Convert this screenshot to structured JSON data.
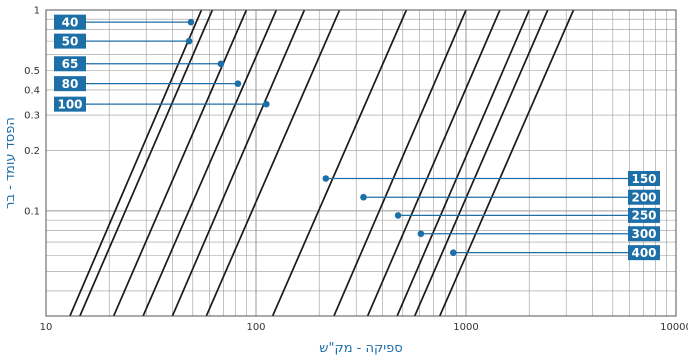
{
  "chart_data": {
    "type": "line",
    "xlabel": "ספיקה - מק\"ש",
    "ylabel": "הפסד עומד - בר",
    "xscale": "log",
    "yscale": "log",
    "xlim": [
      10,
      10000
    ],
    "ylim": [
      0.03,
      1
    ],
    "x_ticks": [
      "10",
      "100",
      "1000",
      "10000"
    ],
    "y_ticks": [
      {
        "value": 1,
        "label": "1"
      },
      {
        "value": 0.5,
        "label": "0.5"
      },
      {
        "value": 0.4,
        "label": "0.4"
      },
      {
        "value": 0.3,
        "label": "0.3"
      },
      {
        "value": 0.2,
        "label": "0.2"
      },
      {
        "value": 0.1,
        "label": "0.1"
      }
    ],
    "grid": true,
    "colors": {
      "line": "#1a1a1a",
      "tag": "#1d6fa8",
      "leader": "#1d6fa8",
      "axis_title": "#1d6fa8",
      "grid": "#9a9a9a"
    },
    "curves": [
      {
        "x": [
          13,
          55
        ],
        "y": [
          0.03,
          1
        ]
      },
      {
        "x": [
          14.5,
          62
        ],
        "y": [
          0.03,
          1
        ]
      },
      {
        "x": [
          21,
          90
        ],
        "y": [
          0.03,
          1
        ]
      },
      {
        "x": [
          29,
          125
        ],
        "y": [
          0.03,
          1
        ]
      },
      {
        "x": [
          40,
          170
        ],
        "y": [
          0.03,
          1
        ]
      },
      {
        "x": [
          58,
          250
        ],
        "y": [
          0.03,
          1
        ]
      },
      {
        "x": [
          120,
          520
        ],
        "y": [
          0.03,
          1
        ]
      },
      {
        "x": [
          235,
          1000
        ],
        "y": [
          0.03,
          1
        ]
      },
      {
        "x": [
          340,
          1450
        ],
        "y": [
          0.03,
          1
        ]
      },
      {
        "x": [
          470,
          2000
        ],
        "y": [
          0.03,
          1
        ]
      },
      {
        "x": [
          570,
          2450
        ],
        "y": [
          0.03,
          1
        ]
      },
      {
        "x": [
          750,
          3250
        ],
        "y": [
          0.03,
          1
        ]
      }
    ],
    "markers": [
      {
        "label": "40",
        "side": "left",
        "x": 49,
        "y": 0.87
      },
      {
        "label": "50",
        "side": "left",
        "x": 48,
        "y": 0.7
      },
      {
        "label": "65",
        "side": "left",
        "x": 68,
        "y": 0.54
      },
      {
        "label": "80",
        "side": "left",
        "x": 82,
        "y": 0.43
      },
      {
        "label": "100",
        "side": "left",
        "x": 112,
        "y": 0.34
      },
      {
        "label": "150",
        "side": "right",
        "x": 215,
        "y": 0.145
      },
      {
        "label": "200",
        "side": "right",
        "x": 325,
        "y": 0.117
      },
      {
        "label": "250",
        "side": "right",
        "x": 475,
        "y": 0.095
      },
      {
        "label": "300",
        "side": "right",
        "x": 610,
        "y": 0.077
      },
      {
        "label": "400",
        "side": "right",
        "x": 870,
        "y": 0.062
      }
    ]
  }
}
